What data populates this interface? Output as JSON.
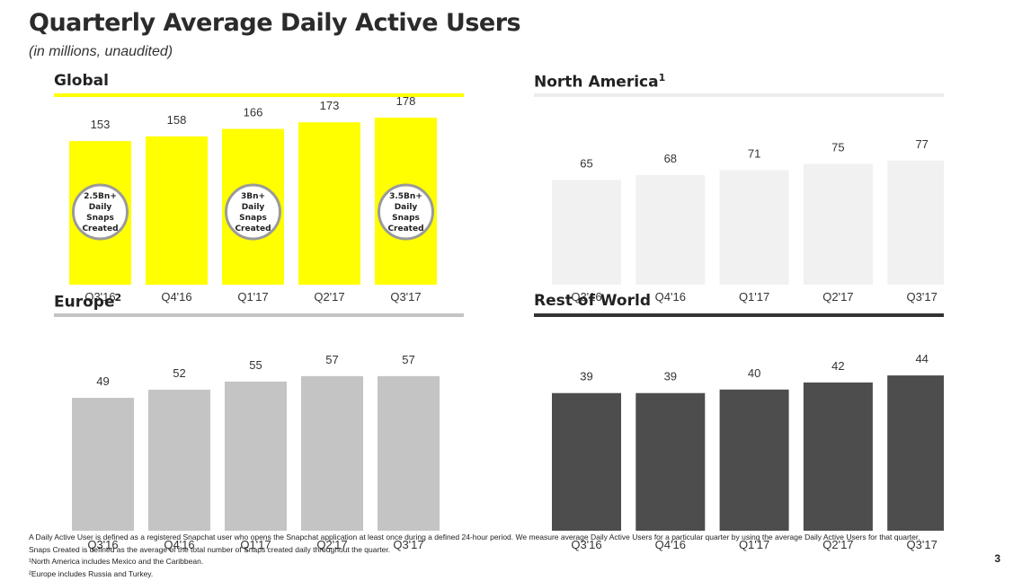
{
  "header": {
    "title": "Quarterly Average Daily Active Users",
    "subtitle": "(in millions, unaudited)"
  },
  "colors": {
    "global": "#ffff00",
    "north_america": "#f1f1f1",
    "europe": "#c4c4c4",
    "rest_of_world": "#4d4d4d",
    "badge_border": "#9a9a9a"
  },
  "chart_data": [
    {
      "type": "bar",
      "title": "Global",
      "categories": [
        "Q3'16",
        "Q4'16",
        "Q1'17",
        "Q2'17",
        "Q3'17"
      ],
      "values": [
        153,
        158,
        166,
        173,
        178
      ],
      "color": "#ffff00",
      "rule_color": "#ffff00",
      "annotations": [
        {
          "category": "Q3'16",
          "lines": [
            "2.5Bn+",
            "Daily",
            "Snaps",
            "Created"
          ]
        },
        {
          "category": "Q1'17",
          "lines": [
            "3Bn+",
            "Daily",
            "Snaps",
            "Created"
          ]
        },
        {
          "category": "Q3'17",
          "lines": [
            "3.5Bn+",
            "Daily",
            "Snaps",
            "Created"
          ]
        }
      ]
    },
    {
      "type": "bar",
      "title": "North America",
      "title_sup": "1",
      "categories": [
        "Q3'16",
        "Q4'16",
        "Q1'17",
        "Q2'17",
        "Q3'17"
      ],
      "values": [
        65,
        68,
        71,
        75,
        77
      ],
      "color": "#f1f1f1",
      "rule_color": "#ececec"
    },
    {
      "type": "bar",
      "title": "Europe",
      "title_sup": "2",
      "categories": [
        "Q3'16",
        "Q4'16",
        "Q1'17",
        "Q2'17",
        "Q3'17"
      ],
      "values": [
        49,
        52,
        55,
        57,
        57
      ],
      "color": "#c4c4c4",
      "rule_color": "#c4c4c4"
    },
    {
      "type": "bar",
      "title": "Rest of World",
      "categories": [
        "Q3'16",
        "Q4'16",
        "Q1'17",
        "Q2'17",
        "Q3'17"
      ],
      "values": [
        39,
        39,
        40,
        42,
        44
      ],
      "color": "#4d4d4d",
      "rule_color": "#333333"
    }
  ],
  "footnotes": [
    "A Daily Active User is defined as a registered Snapchat user who opens the Snapchat application at least once during a defined 24-hour period.  We measure average Daily Active Users for a particular quarter by using the average Daily Active Users for that quarter.",
    "Snaps Created is defined as the average of the total number of Snaps created daily throughout the quarter.",
    "¹North America includes Mexico and the Caribbean.",
    "²Europe includes Russia and Turkey."
  ],
  "page_number": "3"
}
